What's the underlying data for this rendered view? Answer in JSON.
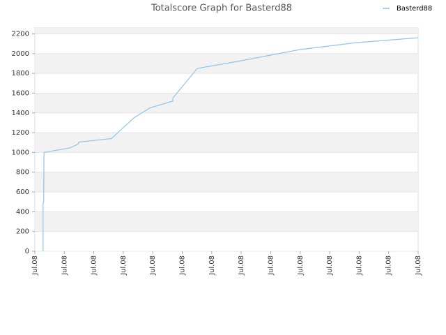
{
  "chart_data": {
    "type": "line",
    "title": "Totalscore Graph for Basterd88",
    "series": [
      {
        "name": "Basterd88",
        "color": "#8cc4ef",
        "x": [
          0.28,
          0.28,
          0.3,
          0.31,
          1.18,
          1.37,
          1.49,
          1.49,
          2.6,
          3.36,
          3.9,
          4.68,
          4.68,
          5.51,
          6.86,
          8.98,
          10.87,
          13
        ],
        "values": [
          0,
          490,
          500,
          1000,
          1045,
          1070,
          1090,
          1105,
          1140,
          1350,
          1450,
          1520,
          1550,
          1850,
          1920,
          2040,
          2110,
          2160
        ]
      }
    ],
    "xlim": [
      0,
      13
    ],
    "xticks": [
      {
        "value": 0,
        "label": "Jul.08"
      },
      {
        "value": 1,
        "label": "Jul.08"
      },
      {
        "value": 2,
        "label": "Jul.08"
      },
      {
        "value": 3,
        "label": "Jul.08"
      },
      {
        "value": 4,
        "label": "Jul.08"
      },
      {
        "value": 5,
        "label": "Jul.08"
      },
      {
        "value": 6,
        "label": "Jul.08"
      },
      {
        "value": 7,
        "label": "Jul.08"
      },
      {
        "value": 8,
        "label": "Jul.08"
      },
      {
        "value": 9,
        "label": "Jul.08"
      },
      {
        "value": 10,
        "label": "Jul.08"
      },
      {
        "value": 11,
        "label": "Jul.08"
      },
      {
        "value": 12,
        "label": "Jul.08"
      },
      {
        "value": 13,
        "label": "Jul.08"
      }
    ],
    "ylim": [
      0,
      2260
    ],
    "yticks": [
      0,
      200,
      400,
      600,
      800,
      1000,
      1200,
      1400,
      1600,
      1800,
      2000,
      2200
    ],
    "grid": true,
    "legend": "top-right"
  }
}
